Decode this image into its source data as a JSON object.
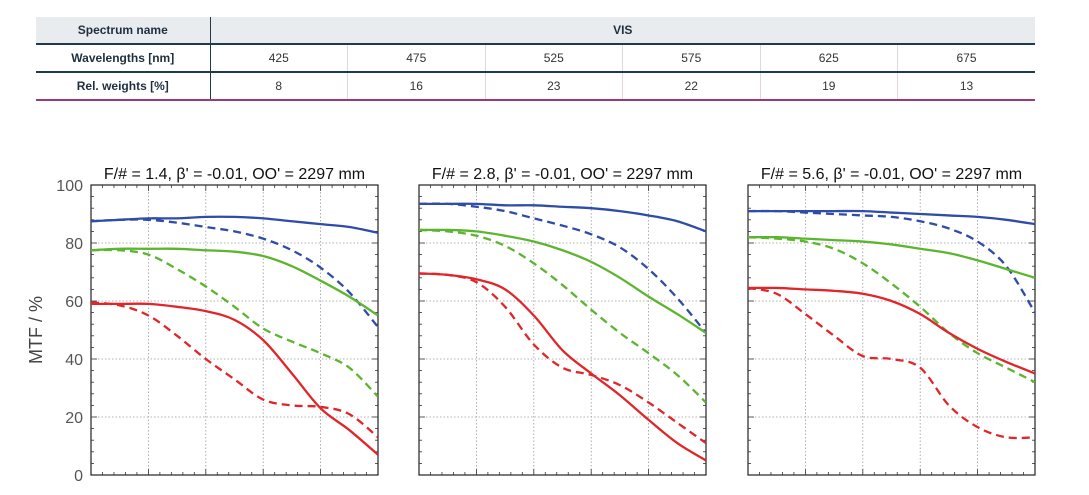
{
  "spectrum_table": {
    "name_label": "Spectrum name",
    "name_value": "VIS",
    "wavelength_label": "Wavelengths [nm]",
    "wavelengths": [
      "425",
      "475",
      "525",
      "575",
      "625",
      "675"
    ],
    "weights_label": "Rel. weights [%]",
    "weights": [
      "8",
      "16",
      "23",
      "22",
      "19",
      "13"
    ]
  },
  "colors": {
    "table_rule": "#1e3b4c",
    "weights_rule": "#9a3a7a",
    "blue": "#2f4ca8",
    "green": "#5cb52f",
    "red": "#e0262a"
  },
  "chart_data": [
    {
      "type": "line",
      "title": "F/# = 1.4, β' = -0.01, OO' = 2297 mm",
      "ylabel": "MTF / %",
      "ylim": [
        0,
        100
      ],
      "yticks": [
        "0",
        "20",
        "40",
        "60",
        "80",
        "100"
      ],
      "grid": true,
      "x": [
        0,
        0.1,
        0.2,
        0.3,
        0.4,
        0.5,
        0.6,
        0.7,
        0.8,
        0.9,
        1.0
      ],
      "series": [
        {
          "color": "blue",
          "dash": false,
          "values": [
            87.5,
            88,
            88.5,
            88.5,
            89,
            89,
            88.5,
            87.5,
            86.5,
            85.5,
            83.5
          ]
        },
        {
          "color": "blue",
          "dash": true,
          "values": [
            87.5,
            88,
            88,
            87,
            85.5,
            84,
            81.5,
            77.5,
            71.5,
            63,
            51
          ]
        },
        {
          "color": "green",
          "dash": false,
          "values": [
            77.5,
            78,
            78,
            78,
            77.5,
            77,
            75.5,
            72,
            67,
            61.5,
            55
          ]
        },
        {
          "color": "green",
          "dash": true,
          "values": [
            77.5,
            77.5,
            76,
            71,
            65,
            58,
            50.5,
            46,
            42,
            37,
            27
          ]
        },
        {
          "color": "red",
          "dash": false,
          "values": [
            59,
            59,
            59,
            58,
            56.5,
            53.5,
            46.5,
            35,
            23,
            15.5,
            7
          ]
        },
        {
          "color": "red",
          "dash": true,
          "values": [
            59.5,
            58.5,
            55,
            48,
            40,
            33,
            26,
            24,
            23.5,
            21,
            13
          ]
        }
      ]
    },
    {
      "type": "line",
      "title": "F/# = 2.8, β' = -0.01, OO' = 2297 mm",
      "ylim": [
        0,
        100
      ],
      "grid": true,
      "x": [
        0,
        0.1,
        0.2,
        0.3,
        0.4,
        0.5,
        0.6,
        0.7,
        0.8,
        0.9,
        1.0
      ],
      "series": [
        {
          "color": "blue",
          "dash": false,
          "values": [
            93.5,
            93.5,
            93.5,
            93,
            93,
            92.5,
            92,
            91,
            89.5,
            87.5,
            84
          ]
        },
        {
          "color": "blue",
          "dash": true,
          "values": [
            93.5,
            93.5,
            92.5,
            91,
            88.5,
            86,
            83,
            78.5,
            71,
            61,
            49
          ]
        },
        {
          "color": "green",
          "dash": false,
          "values": [
            84.5,
            84.5,
            84,
            82.5,
            80.5,
            77.5,
            73.5,
            68,
            61.5,
            55.5,
            49
          ]
        },
        {
          "color": "green",
          "dash": true,
          "values": [
            84.5,
            84,
            82.5,
            79,
            73,
            65.5,
            57,
            49,
            42,
            34.5,
            25
          ]
        },
        {
          "color": "red",
          "dash": false,
          "values": [
            69.5,
            69,
            67.5,
            64,
            55,
            43,
            35,
            27.5,
            19,
            11,
            5
          ]
        },
        {
          "color": "red",
          "dash": true,
          "values": [
            69.5,
            69,
            66.5,
            58,
            45,
            37,
            34.5,
            31,
            25,
            18,
            11
          ]
        }
      ]
    },
    {
      "type": "line",
      "title": "F/# = 5.6, β' = -0.01, OO' = 2297 mm",
      "ylim": [
        0,
        100
      ],
      "grid": true,
      "x": [
        0,
        0.1,
        0.2,
        0.3,
        0.4,
        0.5,
        0.6,
        0.7,
        0.8,
        0.9,
        1.0
      ],
      "series": [
        {
          "color": "blue",
          "dash": false,
          "values": [
            91,
            91,
            91,
            91,
            91,
            90.5,
            90,
            89.5,
            89,
            88,
            86.5
          ]
        },
        {
          "color": "blue",
          "dash": true,
          "values": [
            91,
            91,
            90.5,
            90,
            89.5,
            89,
            87.5,
            85,
            80.5,
            72,
            56
          ]
        },
        {
          "color": "green",
          "dash": false,
          "values": [
            82,
            82,
            81.5,
            81,
            80.5,
            79.5,
            78,
            76.5,
            74,
            71,
            68
          ]
        },
        {
          "color": "green",
          "dash": true,
          "values": [
            82,
            81.5,
            80.5,
            78,
            73,
            66,
            58,
            49,
            42,
            37,
            32
          ]
        },
        {
          "color": "red",
          "dash": false,
          "values": [
            64.5,
            64.5,
            64,
            63.5,
            62.5,
            60,
            55.5,
            49,
            43.5,
            39,
            35
          ]
        },
        {
          "color": "red",
          "dash": true,
          "values": [
            64.5,
            62.5,
            55.5,
            48,
            41,
            40,
            37,
            24,
            16.5,
            13,
            13
          ]
        }
      ]
    }
  ]
}
